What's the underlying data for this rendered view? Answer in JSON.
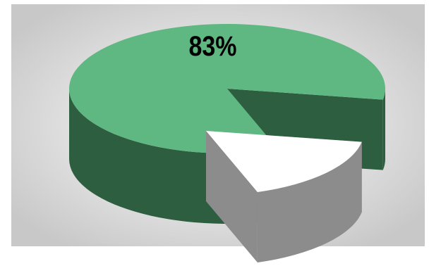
{
  "chart_data": {
    "type": "pie",
    "style": "3d-exploded",
    "title": "",
    "slices": [
      {
        "value": 83,
        "label": "83%",
        "color": "#5fb882",
        "side_color": "#2d5e3f"
      },
      {
        "value": 17,
        "label": "",
        "color": "#ffffff",
        "side_color": "#8c8c8c",
        "exploded": true
      }
    ],
    "background_colors": [
      "#ffffff",
      "#c8c8c8"
    ],
    "legend": "none"
  }
}
